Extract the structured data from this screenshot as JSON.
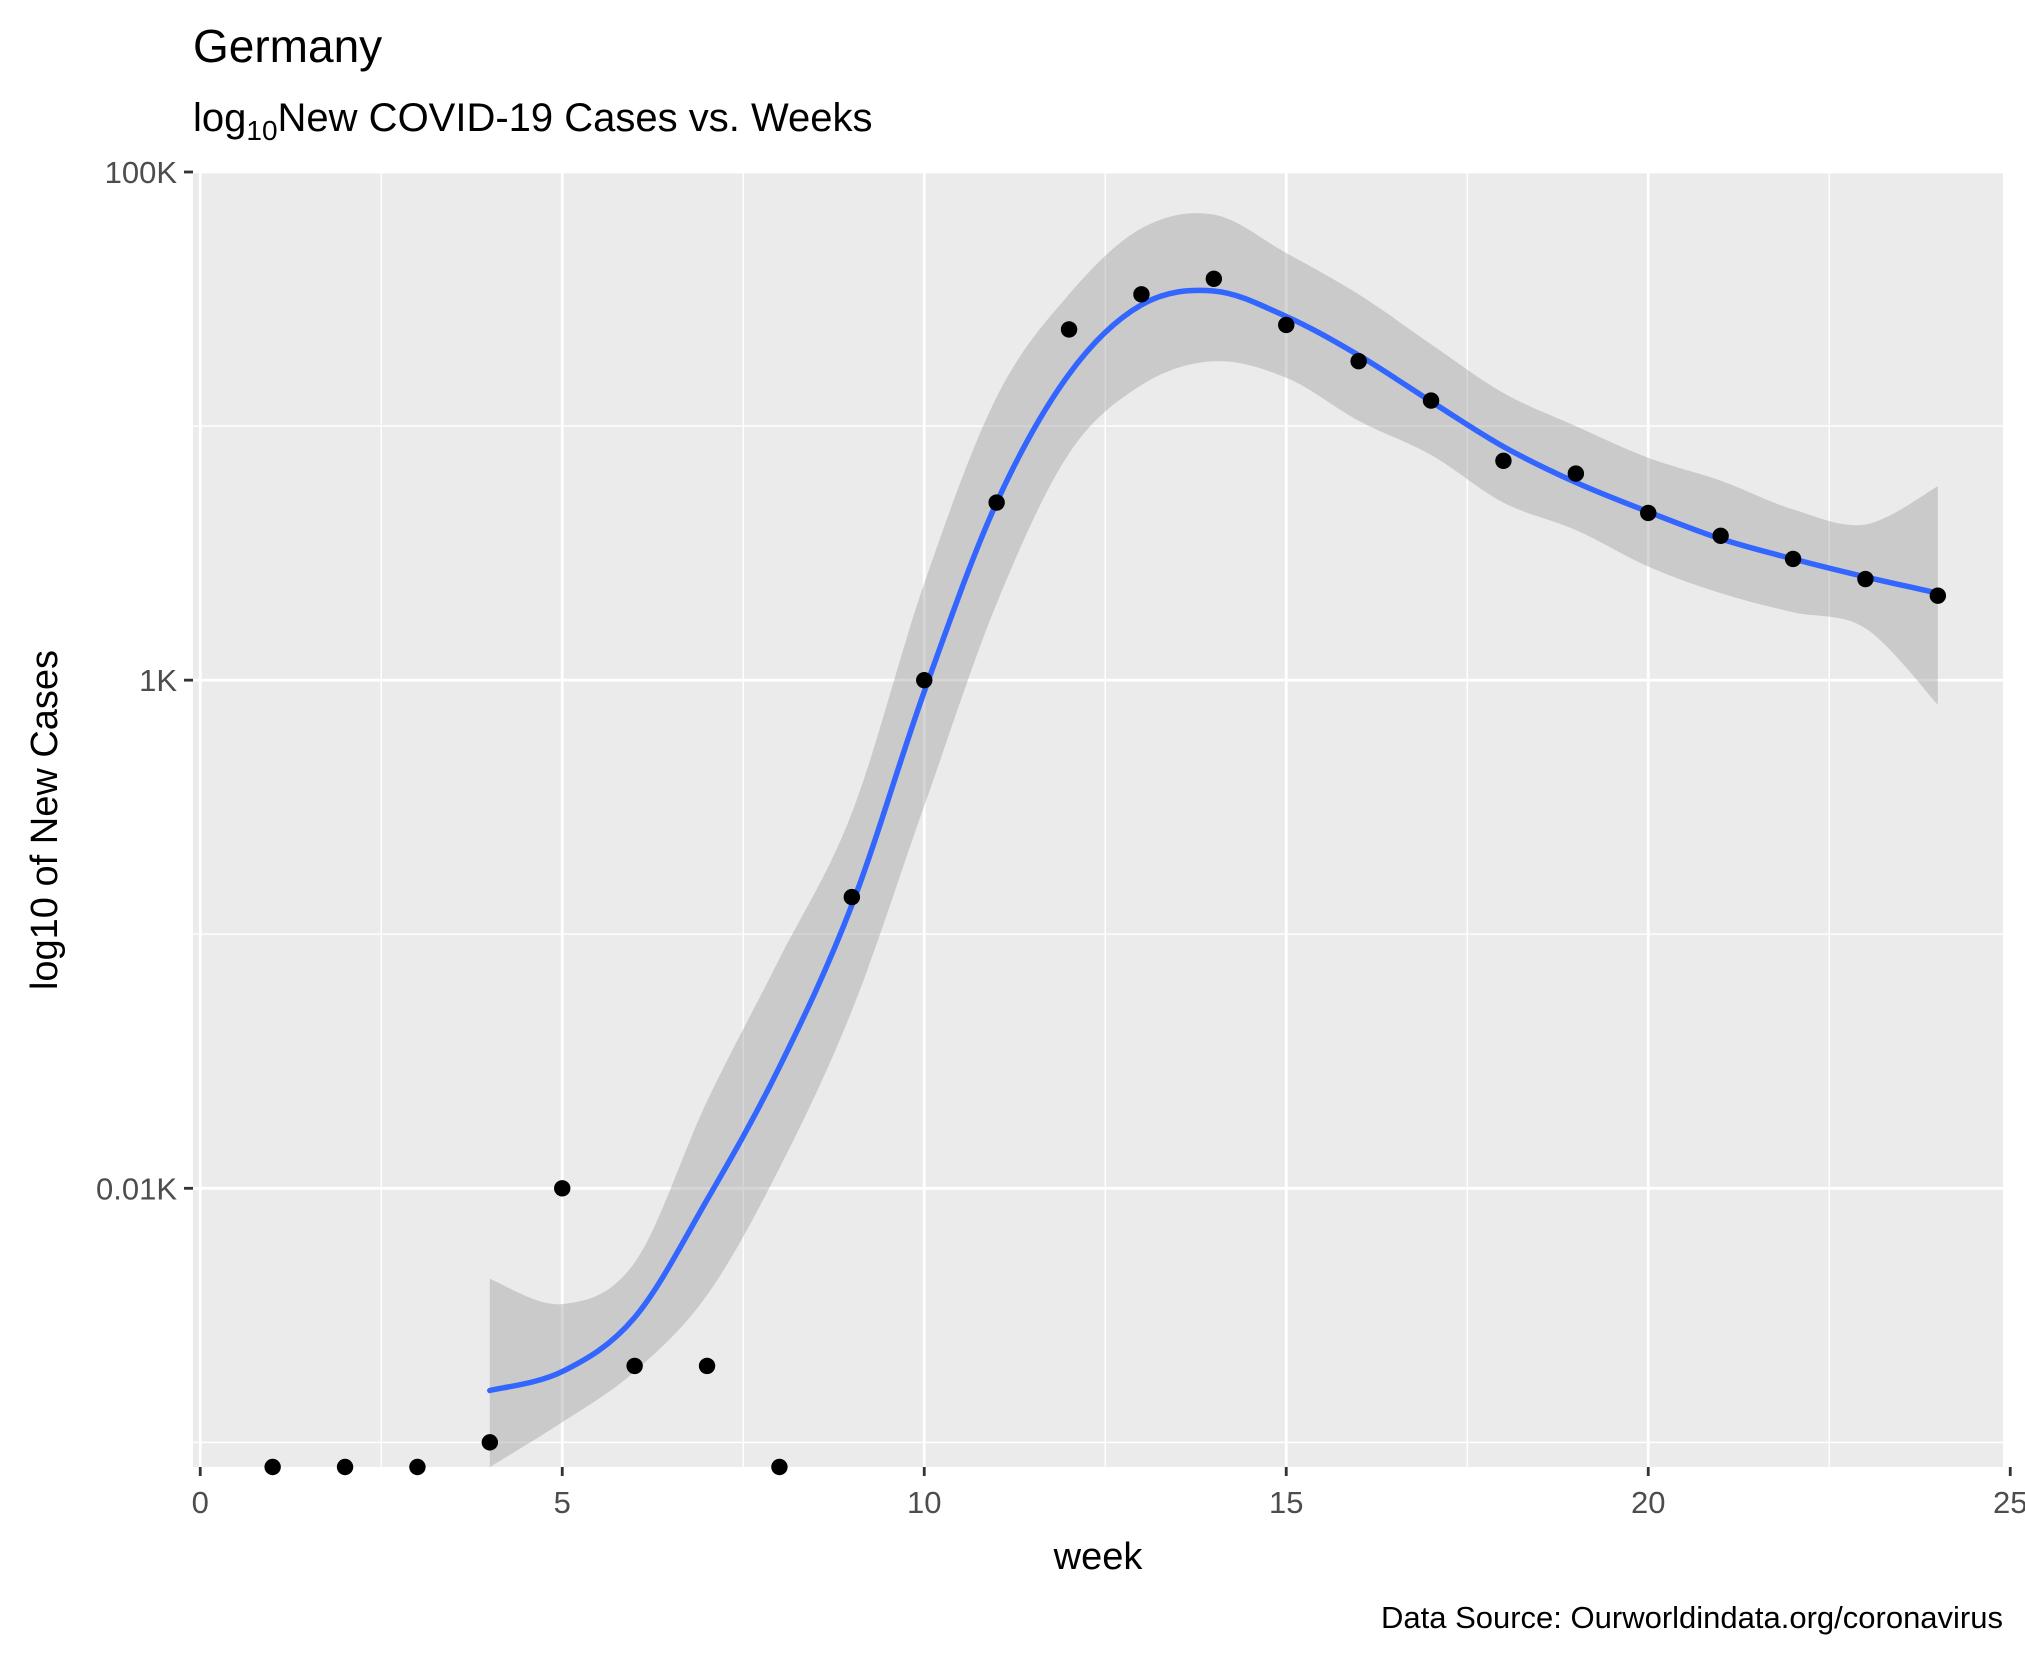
{
  "chart_data": {
    "type": "scatter",
    "title": "Germany",
    "subtitle": {
      "prefix": "log",
      "subscript": "10",
      "rest": "New COVID-19 Cases vs. Weeks"
    },
    "xlabel": "week",
    "ylabel": "log10 of New Cases",
    "caption": "Data Source: Ourworldindata.org/coronavirus",
    "x_scale": "linear",
    "y_scale": "log10",
    "xlim": [
      -0.1,
      24.9
    ],
    "ylim": [
      0.8,
      100000
    ],
    "x_ticks": [
      0,
      5,
      10,
      15,
      20,
      25
    ],
    "x_tick_labels": [
      "0",
      "5",
      "10",
      "15",
      "20",
      "25"
    ],
    "y_ticks": [
      10,
      1000,
      100000
    ],
    "y_tick_labels": [
      "0.01K",
      "1K",
      "100K"
    ],
    "y_minor_ticks": [
      1,
      100,
      10000
    ],
    "grid": true,
    "points": {
      "x": [
        1,
        2,
        3,
        4,
        5,
        6,
        7,
        8,
        9,
        10,
        11,
        12,
        13,
        14,
        15,
        16,
        17,
        18,
        19,
        20,
        21,
        22,
        23,
        24
      ],
      "y": [
        0.8,
        0.8,
        0.8,
        1,
        10,
        2,
        2,
        0.8,
        140,
        1000,
        5000,
        24000,
        33000,
        38000,
        25000,
        18000,
        12600,
        7300,
        6500,
        4550,
        3700,
        3000,
        2500,
        2150
      ],
      "color": "#000000"
    },
    "smooth": {
      "method": "loess",
      "color": "#3366ff",
      "ribbon_color": "#999999",
      "x": [
        4,
        5,
        6,
        7,
        8,
        9,
        10,
        11,
        12,
        13,
        14,
        15,
        16,
        17,
        18,
        19,
        20,
        21,
        22,
        23,
        24
      ],
      "y": [
        1.6,
        1.9,
        3.1,
        9,
        30,
        130,
        900,
        5000,
        16000,
        30000,
        34000,
        27000,
        19000,
        12500,
        8300,
        6000,
        4600,
        3600,
        3000,
        2550,
        2200
      ],
      "ymin": [
        0.8,
        1.2,
        1.9,
        3.8,
        12,
        50,
        320,
        2000,
        7800,
        14500,
        18000,
        15500,
        10500,
        7700,
        5000,
        3900,
        2800,
        2200,
        1850,
        1600,
        800
      ],
      "ymax": [
        4.4,
        3.5,
        5.1,
        22,
        80,
        300,
        2400,
        13000,
        33000,
        60000,
        68000,
        48000,
        33000,
        21000,
        13500,
        10000,
        7500,
        6100,
        4700,
        4100,
        5800
      ]
    }
  }
}
